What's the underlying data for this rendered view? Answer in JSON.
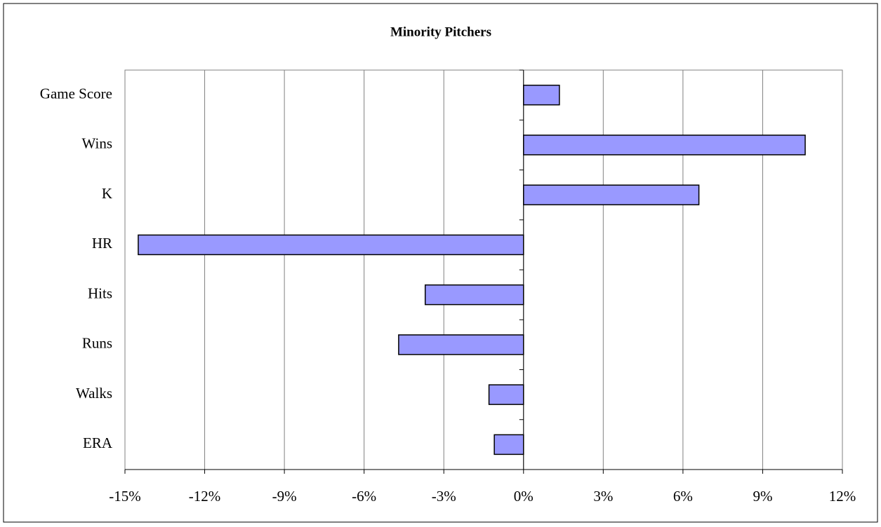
{
  "chart_data": {
    "type": "barh",
    "title": "Minority Pitchers",
    "categories": [
      "Game Score",
      "Wins",
      "K",
      "HR",
      "Hits",
      "Runs",
      "Walks",
      "ERA"
    ],
    "values": [
      1.35,
      10.6,
      6.6,
      -14.5,
      -3.7,
      -4.7,
      -1.3,
      -1.1
    ],
    "color": "#9999ff",
    "xlim": [
      -15,
      12
    ],
    "xticks": [
      {
        "value": -15,
        "label": "-15%"
      },
      {
        "value": -12,
        "label": "-12%"
      },
      {
        "value": -9,
        "label": "-9%"
      },
      {
        "value": -6,
        "label": "-6%"
      },
      {
        "value": -3,
        "label": "-3%"
      },
      {
        "value": 0,
        "label": "0%"
      },
      {
        "value": 3,
        "label": "3%"
      },
      {
        "value": 6,
        "label": "6%"
      },
      {
        "value": 9,
        "label": "9%"
      },
      {
        "value": 12,
        "label": "12%"
      }
    ],
    "grid": true
  }
}
